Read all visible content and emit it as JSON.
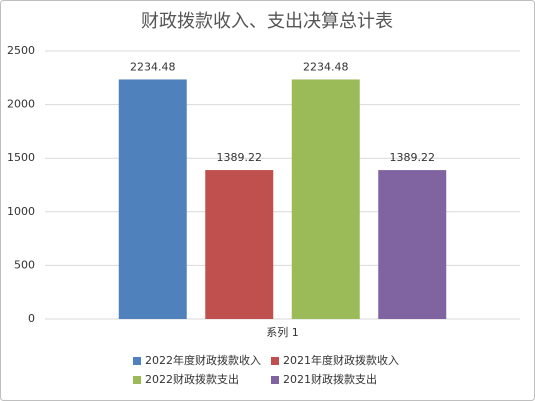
{
  "chart_data": {
    "type": "bar",
    "title": "财政拨款收入、支出决算总计表",
    "categories": [
      "系列 1"
    ],
    "series": [
      {
        "name": "2022年度财政拨款收入",
        "color": "#4f81bd",
        "values": [
          2234.48
        ]
      },
      {
        "name": "2021年度财政拨款收入",
        "color": "#c0504d",
        "values": [
          1389.22
        ]
      },
      {
        "name": "2022财政拨款支出",
        "color": "#9bbb59",
        "values": [
          2234.48
        ]
      },
      {
        "name": "2021财政拨款支出",
        "color": "#8064a2",
        "values": [
          1389.22
        ]
      }
    ],
    "ylim": [
      0,
      2500
    ],
    "yticks": [
      0,
      500,
      1000,
      1500,
      2000,
      2500
    ],
    "grid": true,
    "legend": "bottom"
  }
}
